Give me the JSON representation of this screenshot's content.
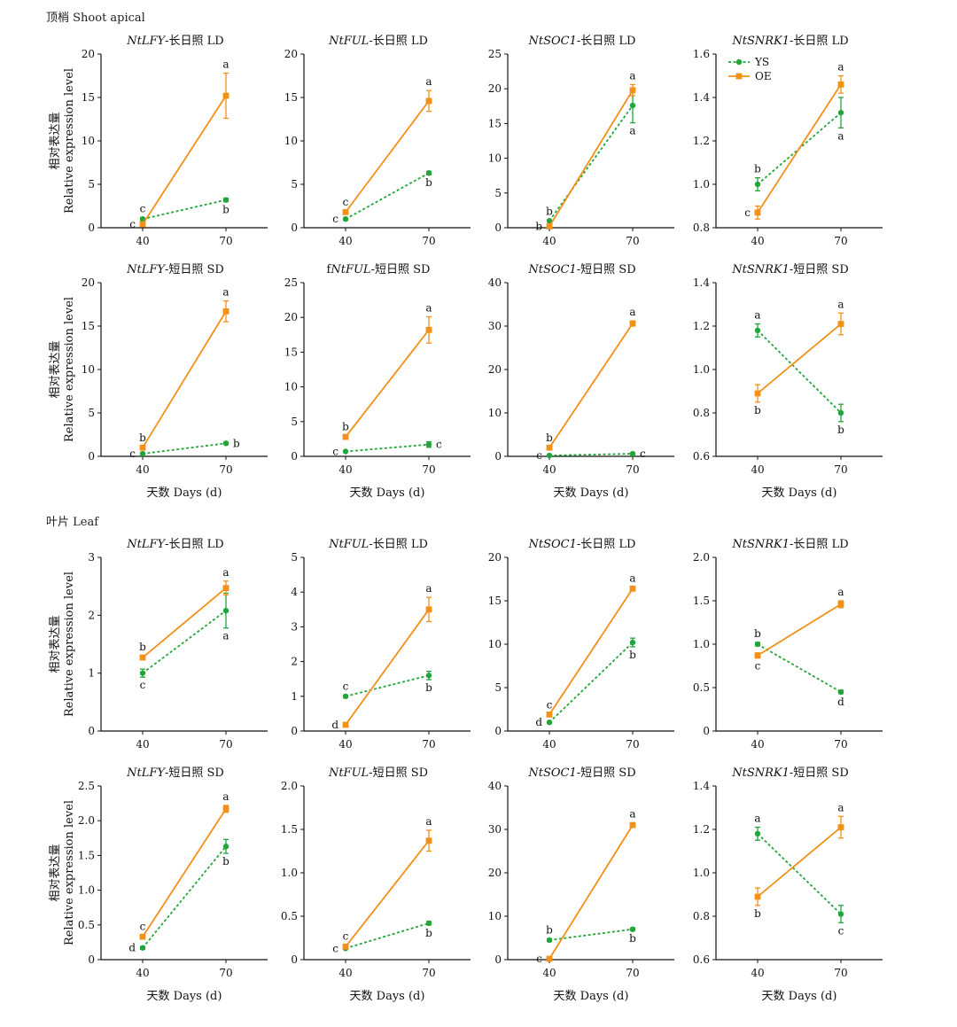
{
  "colors": {
    "YS": "#22a63a",
    "OE": "#f39017"
  },
  "sections": {
    "shoot": "顶梢 Shoot apical",
    "leaf": "叶片 Leaf"
  },
  "y_label_cn": "相对表达量",
  "y_label_en": "Relative expression level",
  "x_label": "天数 Days (d)",
  "legend": [
    {
      "name": "YS",
      "color": "#22a63a",
      "style": "dashed",
      "marker": "circle"
    },
    {
      "name": "OE",
      "color": "#f39017",
      "style": "solid",
      "marker": "square"
    }
  ],
  "chart_data": [
    {
      "type": "line",
      "section": "shoot",
      "row": 0,
      "col": 0,
      "title_prefix": "",
      "gene": "NtLFY",
      "title_suffix": "-长日照 LD",
      "x": [
        40,
        70
      ],
      "xlabel": "",
      "ylim": [
        0,
        20
      ],
      "yticks": [
        "0",
        "5",
        "10",
        "15",
        "20"
      ],
      "series": [
        {
          "name": "YS",
          "values": [
            1.0,
            3.2
          ],
          "errors": [
            0.15,
            0.2
          ],
          "letters": [
            "c",
            "b"
          ]
        },
        {
          "name": "OE",
          "values": [
            0.4,
            15.2
          ],
          "errors": [
            0.1,
            2.6
          ],
          "letters": [
            "c",
            "a"
          ]
        }
      ]
    },
    {
      "type": "line",
      "section": "shoot",
      "row": 0,
      "col": 1,
      "title_prefix": "",
      "gene": "NtFUL",
      "title_suffix": "-长日照 LD",
      "x": [
        40,
        70
      ],
      "xlabel": "",
      "ylim": [
        0,
        20
      ],
      "yticks": [
        "0",
        "5",
        "10",
        "15",
        "20"
      ],
      "series": [
        {
          "name": "YS",
          "values": [
            1.0,
            6.3
          ],
          "errors": [
            0.1,
            0.2
          ],
          "letters": [
            "c",
            "b"
          ]
        },
        {
          "name": "OE",
          "values": [
            1.8,
            14.6
          ],
          "errors": [
            0.15,
            1.2
          ],
          "letters": [
            "c",
            "a"
          ]
        }
      ]
    },
    {
      "type": "line",
      "section": "shoot",
      "row": 0,
      "col": 2,
      "title_prefix": "",
      "gene": "NtSOC1",
      "title_suffix": "-长日照 LD",
      "x": [
        40,
        70
      ],
      "xlabel": "",
      "ylim": [
        0,
        25
      ],
      "yticks": [
        "0",
        "5",
        "10",
        "15",
        "20",
        "25"
      ],
      "series": [
        {
          "name": "YS",
          "values": [
            1.0,
            17.6
          ],
          "errors": [
            0.1,
            2.5
          ],
          "letters": [
            "b",
            "a"
          ]
        },
        {
          "name": "OE",
          "values": [
            0.2,
            19.8
          ],
          "errors": [
            0.05,
            0.8
          ],
          "letters": [
            "b",
            "a"
          ]
        }
      ]
    },
    {
      "type": "line",
      "section": "shoot",
      "row": 0,
      "col": 3,
      "title_prefix": "",
      "gene": "NtSNRK1",
      "title_suffix": "-长日照 LD",
      "x": [
        40,
        70
      ],
      "xlabel": "",
      "ylim": [
        0.8,
        1.6
      ],
      "yticks": [
        "0.8",
        "1.0",
        "1.2",
        "1.4",
        "1.6"
      ],
      "series": [
        {
          "name": "YS",
          "values": [
            1.0,
            1.33
          ],
          "errors": [
            0.03,
            0.07
          ],
          "letters": [
            "b",
            "a"
          ]
        },
        {
          "name": "OE",
          "values": [
            0.87,
            1.46
          ],
          "errors": [
            0.03,
            0.04
          ],
          "letters": [
            "c",
            "a"
          ]
        }
      ]
    },
    {
      "type": "line",
      "section": "shoot",
      "row": 1,
      "col": 0,
      "title_prefix": "",
      "gene": "NtLFY",
      "title_suffix": "-短日照 SD",
      "x": [
        40,
        70
      ],
      "xlabel": "天数 Days (d)",
      "ylim": [
        0,
        20
      ],
      "yticks": [
        "0",
        "5",
        "10",
        "15",
        "20"
      ],
      "series": [
        {
          "name": "YS",
          "values": [
            0.3,
            1.5
          ],
          "errors": [
            0.05,
            0.1
          ],
          "letters": [
            "c",
            "b"
          ]
        },
        {
          "name": "OE",
          "values": [
            1.0,
            16.7
          ],
          "errors": [
            0.1,
            1.2
          ],
          "letters": [
            "b",
            "a"
          ]
        }
      ]
    },
    {
      "type": "line",
      "section": "shoot",
      "row": 1,
      "col": 1,
      "title_prefix": "f",
      "gene": "NtFUL",
      "title_suffix": "-短日照 SD",
      "x": [
        40,
        70
      ],
      "xlabel": "天数 Days (d)",
      "ylim": [
        0,
        25
      ],
      "yticks": [
        "0",
        "5",
        "10",
        "15",
        "20",
        "25"
      ],
      "series": [
        {
          "name": "YS",
          "values": [
            0.7,
            1.7
          ],
          "errors": [
            0.05,
            0.4
          ],
          "letters": [
            "c",
            "c"
          ]
        },
        {
          "name": "OE",
          "values": [
            2.8,
            18.2
          ],
          "errors": [
            0.2,
            1.9
          ],
          "letters": [
            "b",
            "a"
          ]
        }
      ]
    },
    {
      "type": "line",
      "section": "shoot",
      "row": 1,
      "col": 2,
      "title_prefix": "",
      "gene": "NtSOC1",
      "title_suffix": "-短日照 SD",
      "x": [
        40,
        70
      ],
      "xlabel": "天数 Days (d)",
      "ylim": [
        0,
        40
      ],
      "yticks": [
        "0",
        "10",
        "20",
        "30",
        "40"
      ],
      "series": [
        {
          "name": "YS",
          "values": [
            0.2,
            0.6
          ],
          "errors": [
            0.05,
            0.1
          ],
          "letters": [
            "c",
            "c"
          ]
        },
        {
          "name": "OE",
          "values": [
            2.0,
            30.6
          ],
          "errors": [
            0.2,
            0.6
          ],
          "letters": [
            "b",
            "a"
          ]
        }
      ]
    },
    {
      "type": "line",
      "section": "shoot",
      "row": 1,
      "col": 3,
      "title_prefix": "",
      "gene": "NtSNRK1",
      "title_suffix": "-短日照 SD",
      "x": [
        40,
        70
      ],
      "xlabel": "天数 Days (d)",
      "ylim": [
        0.6,
        1.4
      ],
      "yticks": [
        "0.6",
        "0.8",
        "1.0",
        "1.2",
        "1.4"
      ],
      "series": [
        {
          "name": "YS",
          "values": [
            1.18,
            0.8
          ],
          "errors": [
            0.03,
            0.04
          ],
          "letters": [
            "a",
            "b"
          ]
        },
        {
          "name": "OE",
          "values": [
            0.89,
            1.21
          ],
          "errors": [
            0.04,
            0.05
          ],
          "letters": [
            "b",
            "a"
          ]
        }
      ]
    },
    {
      "type": "line",
      "section": "leaf",
      "row": 2,
      "col": 0,
      "title_prefix": "",
      "gene": "NtLFY",
      "title_suffix": "-长日照 LD",
      "x": [
        40,
        70
      ],
      "xlabel": "",
      "ylim": [
        0,
        3
      ],
      "yticks": [
        "0",
        "1",
        "2",
        "3"
      ],
      "series": [
        {
          "name": "YS",
          "values": [
            1.0,
            2.08
          ],
          "errors": [
            0.07,
            0.3
          ],
          "letters": [
            "c",
            "a"
          ]
        },
        {
          "name": "OE",
          "values": [
            1.27,
            2.47
          ],
          "errors": [
            0.03,
            0.12
          ],
          "letters": [
            "b",
            "a"
          ]
        }
      ]
    },
    {
      "type": "line",
      "section": "leaf",
      "row": 2,
      "col": 1,
      "title_prefix": "",
      "gene": "NtFUL",
      "title_suffix": "-长日照 LD",
      "x": [
        40,
        70
      ],
      "xlabel": "",
      "ylim": [
        0,
        5
      ],
      "yticks": [
        "0",
        "1",
        "2",
        "3",
        "4",
        "5"
      ],
      "series": [
        {
          "name": "YS",
          "values": [
            1.0,
            1.6
          ],
          "errors": [
            0.03,
            0.12
          ],
          "letters": [
            "c",
            "b"
          ]
        },
        {
          "name": "OE",
          "values": [
            0.18,
            3.5
          ],
          "errors": [
            0.05,
            0.35
          ],
          "letters": [
            "d",
            "a"
          ]
        }
      ]
    },
    {
      "type": "line",
      "section": "leaf",
      "row": 2,
      "col": 2,
      "title_prefix": "",
      "gene": "NtSOC1",
      "title_suffix": "-长日照 LD",
      "x": [
        40,
        70
      ],
      "xlabel": "",
      "ylim": [
        0,
        20
      ],
      "yticks": [
        "0",
        "5",
        "10",
        "15",
        "20"
      ],
      "series": [
        {
          "name": "YS",
          "values": [
            1.0,
            10.2
          ],
          "errors": [
            0.1,
            0.5
          ],
          "letters": [
            "d",
            "b"
          ]
        },
        {
          "name": "OE",
          "values": [
            1.9,
            16.4
          ],
          "errors": [
            0.1,
            0.2
          ],
          "letters": [
            "c",
            "a"
          ]
        }
      ]
    },
    {
      "type": "line",
      "section": "leaf",
      "row": 2,
      "col": 3,
      "title_prefix": "",
      "gene": "NtSNRK1",
      "title_suffix": "-长日照 LD",
      "x": [
        40,
        70
      ],
      "xlabel": "",
      "ylim": [
        0,
        2
      ],
      "yticks": [
        "0",
        "0.5",
        "1.0",
        "1.5",
        "2.0"
      ],
      "series": [
        {
          "name": "YS",
          "values": [
            1.0,
            0.45
          ],
          "errors": [
            0.02,
            0.02
          ],
          "letters": [
            "b",
            "d"
          ]
        },
        {
          "name": "OE",
          "values": [
            0.87,
            1.46
          ],
          "errors": [
            0.03,
            0.04
          ],
          "letters": [
            "c",
            "a"
          ]
        }
      ]
    },
    {
      "type": "line",
      "section": "leaf",
      "row": 3,
      "col": 0,
      "title_prefix": "",
      "gene": "NtLFY",
      "title_suffix": "-短日照 SD",
      "x": [
        40,
        70
      ],
      "xlabel": "天数 Days (d)",
      "ylim": [
        0,
        2.5
      ],
      "yticks": [
        "0",
        "0.5",
        "1.0",
        "1.5",
        "2.0",
        "2.5"
      ],
      "series": [
        {
          "name": "YS",
          "values": [
            0.17,
            1.63
          ],
          "errors": [
            0.02,
            0.1
          ],
          "letters": [
            "d",
            "b"
          ]
        },
        {
          "name": "OE",
          "values": [
            0.33,
            2.17
          ],
          "errors": [
            0.02,
            0.05
          ],
          "letters": [
            "c",
            "a"
          ]
        }
      ]
    },
    {
      "type": "line",
      "section": "leaf",
      "row": 3,
      "col": 1,
      "title_prefix": "",
      "gene": "NtFUL",
      "title_suffix": "-短日照 SD",
      "x": [
        40,
        70
      ],
      "xlabel": "天数 Days (d)",
      "ylim": [
        0,
        2
      ],
      "yticks": [
        "0",
        "0.5",
        "1.0",
        "1.5",
        "2.0"
      ],
      "series": [
        {
          "name": "YS",
          "values": [
            0.13,
            0.42
          ],
          "errors": [
            0.01,
            0.02
          ],
          "letters": [
            "c",
            "b"
          ]
        },
        {
          "name": "OE",
          "values": [
            0.15,
            1.37
          ],
          "errors": [
            0.02,
            0.12
          ],
          "letters": [
            "c",
            "a"
          ]
        }
      ]
    },
    {
      "type": "line",
      "section": "leaf",
      "row": 3,
      "col": 2,
      "title_prefix": "",
      "gene": "NtSOC1",
      "title_suffix": "-短日照 SD",
      "x": [
        40,
        70
      ],
      "xlabel": "天数 Days (d)",
      "ylim": [
        0,
        40
      ],
      "yticks": [
        "0",
        "10",
        "20",
        "30",
        "40"
      ],
      "series": [
        {
          "name": "YS",
          "values": [
            4.5,
            7.0
          ],
          "errors": [
            0.3,
            0.3
          ],
          "letters": [
            "b",
            "b"
          ]
        },
        {
          "name": "OE",
          "values": [
            0.2,
            31.0
          ],
          "errors": [
            0.05,
            0.5
          ],
          "letters": [
            "c",
            "a"
          ]
        }
      ]
    },
    {
      "type": "line",
      "section": "leaf",
      "row": 3,
      "col": 3,
      "title_prefix": "",
      "gene": "NtSNRK1",
      "title_suffix": "-短日照 SD",
      "x": [
        40,
        70
      ],
      "xlabel": "天数 Days (d)",
      "ylim": [
        0.6,
        1.4
      ],
      "yticks": [
        "0.6",
        "0.8",
        "1.0",
        "1.2",
        "1.4"
      ],
      "series": [
        {
          "name": "YS",
          "values": [
            1.18,
            0.81
          ],
          "errors": [
            0.03,
            0.04
          ],
          "letters": [
            "a",
            "c"
          ]
        },
        {
          "name": "OE",
          "values": [
            0.89,
            1.21
          ],
          "errors": [
            0.04,
            0.05
          ],
          "letters": [
            "b",
            "a"
          ]
        }
      ]
    }
  ]
}
